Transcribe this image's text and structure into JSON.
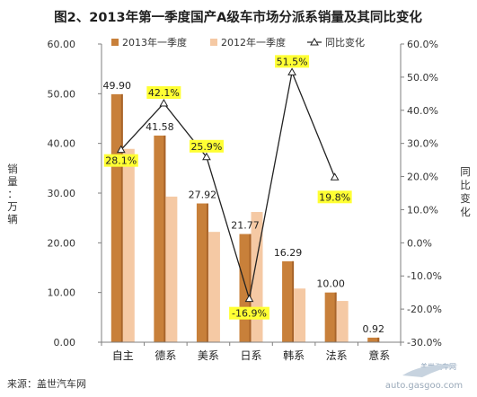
{
  "chart_data": {
    "type": "bar",
    "title": "图2、2013年第一季度国产A级车市场分派系销量及其同比变化",
    "categories": [
      "自主",
      "德系",
      "美系",
      "日系",
      "韩系",
      "法系",
      "意系"
    ],
    "series": [
      {
        "name": "2013年一季度",
        "kind": "bar",
        "axis": "left",
        "color": "#c8803a",
        "values": [
          49.9,
          41.58,
          27.92,
          21.77,
          16.29,
          10.0,
          0.92
        ],
        "labels": [
          "49.90",
          "41.58",
          "27.92",
          "21.77",
          "16.29",
          "10.00",
          "0.92"
        ]
      },
      {
        "name": "2012年一季度",
        "kind": "bar",
        "axis": "left",
        "color": "#f5c9a4",
        "values": [
          38.9,
          29.3,
          22.2,
          26.2,
          10.8,
          8.3,
          0
        ]
      },
      {
        "name": "同比变化",
        "kind": "line",
        "axis": "right",
        "color": "#222222",
        "values": [
          28.1,
          42.1,
          25.9,
          -16.9,
          51.5,
          19.8,
          null
        ],
        "labels": [
          "28.1%",
          "42.1%",
          "25.9%",
          "-16.9%",
          "51.5%",
          "19.8%",
          null
        ]
      }
    ],
    "ylabel": "销量：万辆",
    "y2label": "同比变化",
    "ylim": [
      0,
      60
    ],
    "y2lim": [
      -30,
      60
    ],
    "yticks": [
      "0.00",
      "10.00",
      "20.00",
      "30.00",
      "40.00",
      "50.00",
      "60.00"
    ],
    "y2ticks": [
      "-30.0%",
      "-20.0%",
      "-10.0%",
      "0.0%",
      "10.0%",
      "20.0%",
      "30.0%",
      "40.0%",
      "50.0%",
      "60.0%"
    ],
    "legend_position": "top",
    "grid": false,
    "label_highlight_color": "#ffff33"
  },
  "source": "来源：盖世汽车网",
  "watermark": {
    "line1": "盖世汽车网",
    "line2": "auto.gasgoo.com"
  }
}
